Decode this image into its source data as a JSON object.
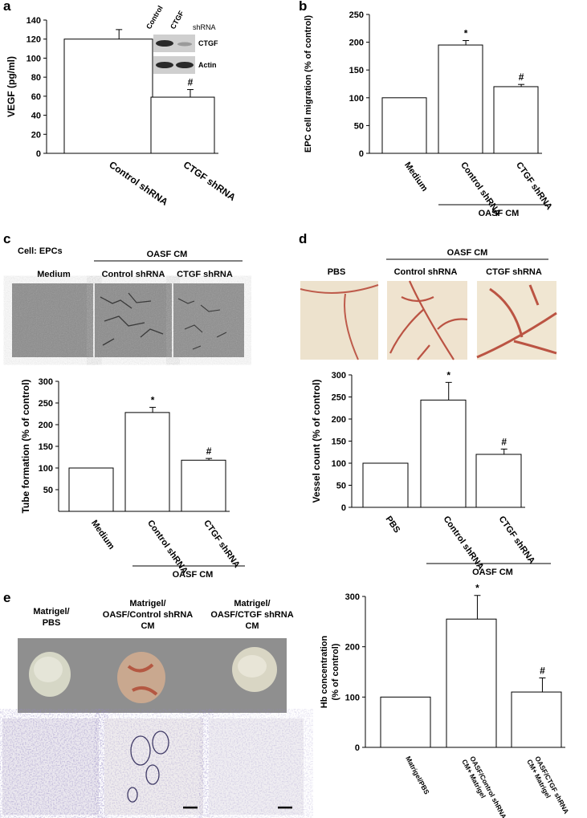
{
  "panels": {
    "a": "a",
    "b": "b",
    "c": "c",
    "d": "d",
    "e": "e"
  },
  "western": {
    "col_control": "Control",
    "col_ctgf": "CTGF",
    "col_shrna": "shRNA",
    "row_ctgf": "CTGF",
    "row_actin": "Actin"
  },
  "panel_c_images": {
    "cell_label": "Cell: EPCs",
    "group_label": "OASF CM",
    "col_medium": "Medium",
    "col_control": "Control shRNA",
    "col_ctgf": "CTGF shRNA"
  },
  "panel_d_images": {
    "group_label": "OASF CM",
    "col_pbs": "PBS",
    "col_control": "Control shRNA",
    "col_ctgf": "CTGF shRNA"
  },
  "panel_e_images": {
    "col1_l1": "Matrigel/",
    "col1_l2": "PBS",
    "col2_l1": "Matrigel/",
    "col2_l2": "OASF/Control shRNA",
    "col2_l3": "CM",
    "col3_l1": "Matrigel/",
    "col3_l2": "OASF/CTGF shRNA",
    "col3_l3": "CM"
  },
  "colors": {
    "axis": "#000000",
    "bar_fill": "#ffffff",
    "micrograph_gray": "#8a8a8a",
    "membrane_bg": "#efe3cf",
    "vessel_red": "#b23a2a",
    "stain_purple": "#4b3e8c"
  },
  "chart_data": [
    {
      "id": "a",
      "type": "bar",
      "categories": [
        "Control shRNA",
        "CTGF shRNA"
      ],
      "values": [
        120,
        59
      ],
      "errors": [
        10,
        8
      ],
      "markers": [
        "",
        "#"
      ],
      "ylabel": "VEGF (pg/ml)",
      "ylim": [
        0,
        140
      ],
      "yticks": [
        0,
        20,
        40,
        60,
        80,
        100,
        120,
        140
      ]
    },
    {
      "id": "b",
      "type": "bar",
      "categories": [
        "Medium",
        "Control shRNA",
        "CTGF shRNA"
      ],
      "values": [
        100,
        195,
        120
      ],
      "errors": [
        0,
        8,
        4
      ],
      "markers": [
        "",
        "*",
        "#"
      ],
      "ylabel": "EPC cell migration (% of control)",
      "group_label": "OASF CM",
      "ylim": [
        0,
        250
      ],
      "yticks": [
        0,
        50,
        100,
        150,
        200,
        250
      ]
    },
    {
      "id": "c",
      "type": "bar",
      "categories": [
        "Medium",
        "Control shRNA",
        "CTGF shRNA"
      ],
      "values": [
        100,
        228,
        118
      ],
      "errors": [
        0,
        12,
        4
      ],
      "markers": [
        "",
        "*",
        "#"
      ],
      "ylabel": "Tube formation (% of control)",
      "group_label": "OASF CM",
      "ylim": [
        0,
        300
      ],
      "yticks": [
        50,
        100,
        150,
        200,
        250,
        300
      ]
    },
    {
      "id": "d",
      "type": "bar",
      "categories": [
        "PBS",
        "Control shRNA",
        "CTGF shRNA"
      ],
      "values": [
        100,
        243,
        120
      ],
      "errors": [
        0,
        40,
        12
      ],
      "markers": [
        "",
        "*",
        "#"
      ],
      "ylabel": "Vessel count (% of control)",
      "group_label": "OASF CM",
      "ylim": [
        0,
        300
      ],
      "yticks": [
        0,
        50,
        100,
        150,
        200,
        250,
        300
      ]
    },
    {
      "id": "e",
      "type": "bar",
      "categories": [
        "Matrigel/PBS",
        "OASF/Control shRNA CM+ Matrigel",
        "OASF/CTGF shRNA CM+ Matrigel"
      ],
      "values": [
        100,
        255,
        110
      ],
      "errors": [
        0,
        47,
        28
      ],
      "markers": [
        "",
        "*",
        "#"
      ],
      "ylabel": "Hb concentration (% of control)",
      "ylim": [
        0,
        300
      ],
      "yticks": [
        0,
        100,
        200,
        300
      ]
    }
  ]
}
